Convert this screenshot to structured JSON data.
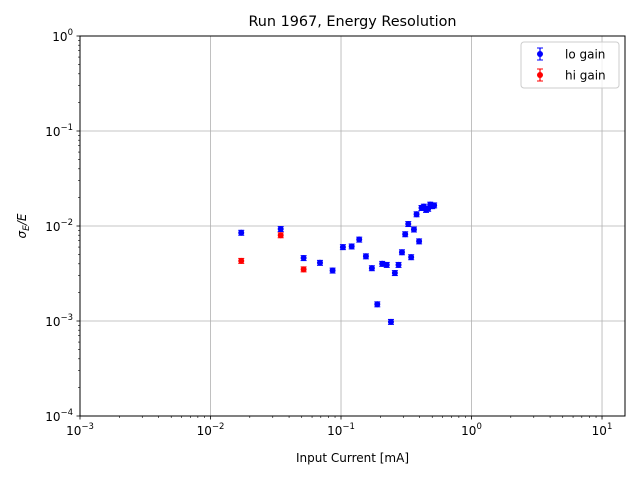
{
  "chart_data": {
    "type": "scatter",
    "title": "Run 1967, Energy Resolution",
    "xlabel": "Input Current [mA]",
    "ylabel_main": "σ",
    "ylabel_sub": "E",
    "ylabel_tail": "/E",
    "xscale": "log",
    "yscale": "log",
    "xlim": [
      0.001,
      15
    ],
    "ylim": [
      0.0001,
      1
    ],
    "grid": true,
    "legend_location": "top-right",
    "x_ticks": [
      {
        "value": 0.001,
        "base": "10",
        "exp": "−3"
      },
      {
        "value": 0.01,
        "base": "10",
        "exp": "−2"
      },
      {
        "value": 0.1,
        "base": "10",
        "exp": "−1"
      },
      {
        "value": 1,
        "base": "10",
        "exp": "0"
      },
      {
        "value": 10,
        "base": "10",
        "exp": "1"
      }
    ],
    "y_ticks": [
      {
        "value": 0.0001,
        "base": "10",
        "exp": "−4"
      },
      {
        "value": 0.001,
        "base": "10",
        "exp": "−3"
      },
      {
        "value": 0.01,
        "base": "10",
        "exp": "−2"
      },
      {
        "value": 0.1,
        "base": "10",
        "exp": "−1"
      },
      {
        "value": 1,
        "base": "10",
        "exp": "0"
      }
    ],
    "series": [
      {
        "name": "lo gain",
        "color": "#0000ff",
        "x": [
          0.0172,
          0.0345,
          0.0517,
          0.069,
          0.0862,
          0.1034,
          0.1207,
          0.1379,
          0.1552,
          0.1724,
          0.1897,
          0.2069,
          0.2241,
          0.2414,
          0.2586,
          0.2759,
          0.2931,
          0.3103,
          0.3276,
          0.3448,
          0.3621,
          0.3793,
          0.3966,
          0.4138,
          0.431,
          0.4483,
          0.4655,
          0.4828,
          0.5,
          0.5172
        ],
        "y": [
          0.0085,
          0.0093,
          0.0046,
          0.0041,
          0.0034,
          0.006,
          0.0061,
          0.0072,
          0.0048,
          0.0036,
          0.0015,
          0.004,
          0.0039,
          0.00098,
          0.0032,
          0.0039,
          0.0053,
          0.0082,
          0.0105,
          0.0047,
          0.0092,
          0.0133,
          0.0069,
          0.0155,
          0.016,
          0.0148,
          0.0152,
          0.0168,
          0.0162,
          0.0165
        ],
        "yerr_frac": 0.06
      },
      {
        "name": "hi gain",
        "color": "#ff0000",
        "x": [
          0.0172,
          0.0345,
          0.0517
        ],
        "y": [
          0.0043,
          0.008,
          0.0035
        ],
        "yerr_frac": 0.06
      }
    ]
  }
}
